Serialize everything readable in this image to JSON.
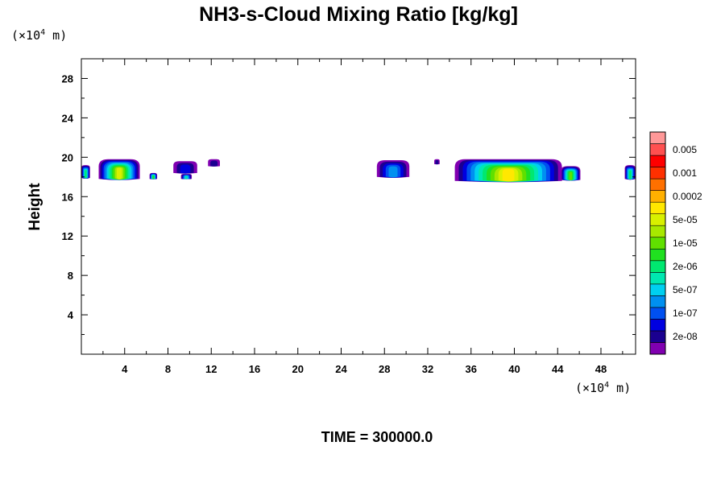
{
  "chart_data": {
    "type": "heatmap",
    "title": "NH3-s-Cloud Mixing Ratio [kg/kg]",
    "ylabel": "Height",
    "x_unit": {
      "prefix": "(×10",
      "exp": "4",
      "suffix": " m)"
    },
    "y_unit": {
      "prefix": "(×10",
      "exp": "4",
      "suffix": " m)"
    },
    "xlim": [
      0,
      51.2
    ],
    "ylim": [
      0,
      30
    ],
    "x_ticks": [
      4,
      8,
      12,
      16,
      20,
      24,
      28,
      32,
      36,
      40,
      44,
      48
    ],
    "y_ticks": [
      4,
      8,
      12,
      16,
      20,
      24,
      28
    ],
    "color_levels": [
      {
        "color": "#8000b0",
        "label": ""
      },
      {
        "color": "#1a0090",
        "label": "2e-08"
      },
      {
        "color": "#0000e0",
        "label": ""
      },
      {
        "color": "#0050f0",
        "label": "1e-07"
      },
      {
        "color": "#0090f0",
        "label": ""
      },
      {
        "color": "#00d0f0",
        "label": "5e-07"
      },
      {
        "color": "#00e8b0",
        "label": ""
      },
      {
        "color": "#00e870",
        "label": "2e-06"
      },
      {
        "color": "#20e020",
        "label": ""
      },
      {
        "color": "#60e000",
        "label": "1e-05"
      },
      {
        "color": "#a8e800",
        "label": ""
      },
      {
        "color": "#d8f000",
        "label": "5e-05"
      },
      {
        "color": "#ffe800",
        "label": ""
      },
      {
        "color": "#ffb000",
        "label": "0.0002"
      },
      {
        "color": "#ff7000",
        "label": ""
      },
      {
        "color": "#ff3000",
        "label": "0.001"
      },
      {
        "color": "#ff0000",
        "label": ""
      },
      {
        "color": "#ff5050",
        "label": "0.005"
      },
      {
        "color": "#ff9898",
        "label": ""
      }
    ],
    "clouds": [
      {
        "x0": 0.0,
        "x1": 0.8,
        "base": 17.9,
        "top": 19.2,
        "peak": 7
      },
      {
        "x0": 1.6,
        "x1": 5.4,
        "base": 17.8,
        "top": 19.8,
        "peak": 11
      },
      {
        "x0": 6.3,
        "x1": 7.0,
        "base": 17.8,
        "top": 18.4,
        "peak": 8
      },
      {
        "x0": 8.5,
        "x1": 10.7,
        "base": 18.4,
        "top": 19.6,
        "peak": 2
      },
      {
        "x0": 9.2,
        "x1": 10.2,
        "base": 17.8,
        "top": 18.3,
        "peak": 6
      },
      {
        "x0": 11.7,
        "x1": 12.8,
        "base": 19.1,
        "top": 19.8,
        "peak": 1
      },
      {
        "x0": 27.3,
        "x1": 30.3,
        "base": 18.0,
        "top": 19.7,
        "peak": 4
      },
      {
        "x0": 32.6,
        "x1": 33.1,
        "base": 19.3,
        "top": 19.8,
        "peak": 1
      },
      {
        "x0": 34.5,
        "x1": 44.4,
        "base": 17.6,
        "top": 19.8,
        "peak": 12
      },
      {
        "x0": 44.3,
        "x1": 46.1,
        "base": 17.7,
        "top": 19.1,
        "peak": 9
      },
      {
        "x0": 50.2,
        "x1": 51.2,
        "base": 17.8,
        "top": 19.2,
        "peak": 7
      }
    ]
  },
  "footer": {
    "time_label": "TIME = 300000.0"
  }
}
